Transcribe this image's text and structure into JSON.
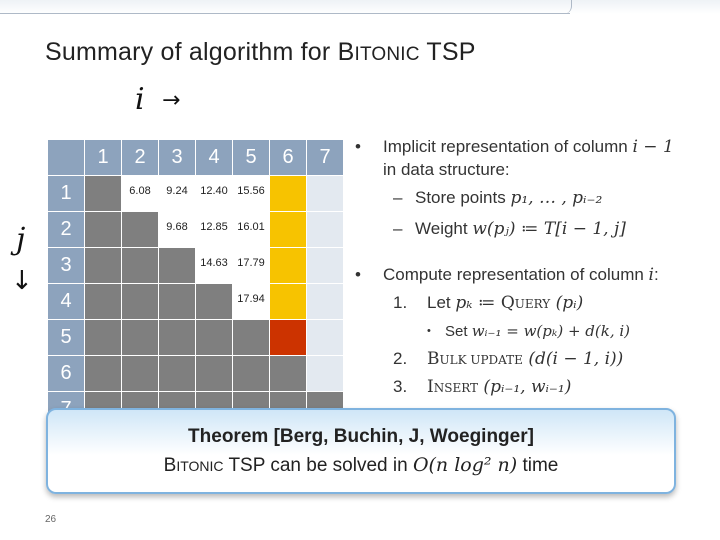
{
  "slide": {
    "title_prefix": "Summary of algorithm for B",
    "title_sc": "ITONIC",
    "title_suffix": " TSP",
    "page_number": "26"
  },
  "axes": {
    "i_label": "i",
    "i_arrow": "→",
    "j_label": "j",
    "j_arrow": "↓"
  },
  "table": {
    "col_headers": [
      "1",
      "2",
      "3",
      "4",
      "5",
      "6",
      "7"
    ],
    "row_headers": [
      "1",
      "2",
      "3",
      "4",
      "5",
      "6",
      "7"
    ],
    "cells": [
      [
        {
          "c": "dark"
        },
        {
          "c": "white",
          "v": "6.08"
        },
        {
          "c": "white",
          "v": "9.24"
        },
        {
          "c": "white",
          "v": "12.40"
        },
        {
          "c": "white",
          "v": "15.56"
        },
        {
          "c": "yellow"
        },
        {
          "c": "light"
        }
      ],
      [
        {
          "c": "dark"
        },
        {
          "c": "dark"
        },
        {
          "c": "white",
          "v": "9.68"
        },
        {
          "c": "white",
          "v": "12.85"
        },
        {
          "c": "white",
          "v": "16.01"
        },
        {
          "c": "yellow"
        },
        {
          "c": "light"
        }
      ],
      [
        {
          "c": "dark"
        },
        {
          "c": "dark"
        },
        {
          "c": "dark"
        },
        {
          "c": "white",
          "v": "14.63"
        },
        {
          "c": "white",
          "v": "17.79"
        },
        {
          "c": "yellow"
        },
        {
          "c": "light"
        }
      ],
      [
        {
          "c": "dark"
        },
        {
          "c": "dark"
        },
        {
          "c": "dark"
        },
        {
          "c": "dark"
        },
        {
          "c": "white",
          "v": "17.94"
        },
        {
          "c": "yellow"
        },
        {
          "c": "light"
        }
      ],
      [
        {
          "c": "dark"
        },
        {
          "c": "dark"
        },
        {
          "c": "dark"
        },
        {
          "c": "dark"
        },
        {
          "c": "dark"
        },
        {
          "c": "red"
        },
        {
          "c": "light"
        }
      ],
      [
        {
          "c": "dark"
        },
        {
          "c": "dark"
        },
        {
          "c": "dark"
        },
        {
          "c": "dark"
        },
        {
          "c": "dark"
        },
        {
          "c": "dark"
        },
        {
          "c": "light"
        }
      ],
      [
        {
          "c": "dark"
        },
        {
          "c": "dark"
        },
        {
          "c": "dark"
        },
        {
          "c": "dark"
        },
        {
          "c": "dark"
        },
        {
          "c": "dark"
        },
        {
          "c": "dark"
        }
      ]
    ]
  },
  "colors": {
    "header_fill": "#8da3bd",
    "dark_cell": "#7f7f7f",
    "light_cell": "#e3e9f0",
    "yellow_cell": "#f7c300",
    "red_cell": "#cc3300"
  },
  "bullets": {
    "b1_text": "Implicit representation of column ",
    "b1_math": "i − 1",
    "b1_line2": "in data structure:",
    "sub1_text": "Store points ",
    "sub1_math": "p₁, … , pᵢ₋₂",
    "sub2_text": "Weight ",
    "sub2_math": "w(pⱼ) ≔ T[i − 1, j]",
    "b2_text": "Compute representation of column ",
    "b2_math": "i",
    "b2_colon": ":",
    "step1_num": "1.",
    "step1_text": "Let ",
    "step1_math": "pₖ ≔ ",
    "step1_op_first": "Q",
    "step1_op_rest": "UERY",
    "step1_arg": " (pᵢ)",
    "step1_sub": "Set ",
    "step1_sub_math": "wᵢ₋₁ = w(pₖ) + d(k, i)",
    "step2_num": "2.",
    "step2_op_first": "B",
    "step2_op_rest": "ULK UPDATE",
    "step2_arg": " (d(i − 1, i))",
    "step3_num": "3.",
    "step3_op_first": "I",
    "step3_op_rest": "NSERT",
    "step3_arg": " (pᵢ₋₁, wᵢ₋₁)"
  },
  "theorem": {
    "title": "Theorem [Berg, Buchin, J, Woeginger]",
    "body_b": "B",
    "body_sc": "ITONIC",
    "body_rest": " TSP can be solved in ",
    "body_math": "O(n log² n)",
    "body_end": " time"
  }
}
